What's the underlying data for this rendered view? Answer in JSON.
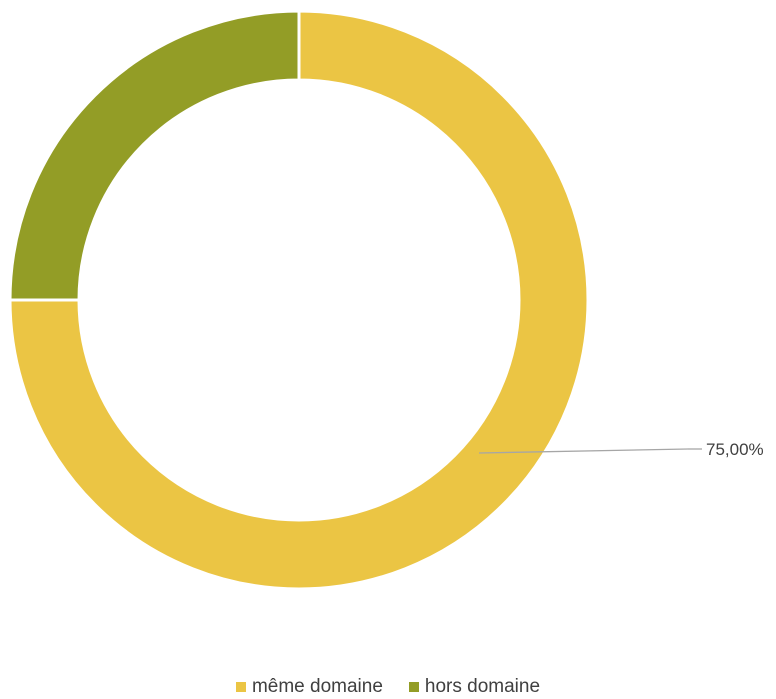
{
  "chart_data": {
    "type": "pie",
    "variant": "doughnut",
    "title": "",
    "series": [
      {
        "categories": [
          "même domaine",
          "hors domaine"
        ],
        "values": [
          75,
          25
        ],
        "colors": [
          "#EBC544",
          "#939D26"
        ]
      }
    ],
    "data_labels": [
      {
        "category": "même domaine",
        "text": "75,00%"
      }
    ],
    "legend": {
      "placement": "bottom",
      "entries": [
        {
          "label": "même domaine",
          "color": "#EBC544"
        },
        {
          "label": "hors domaine",
          "color": "#939D26"
        }
      ]
    }
  }
}
